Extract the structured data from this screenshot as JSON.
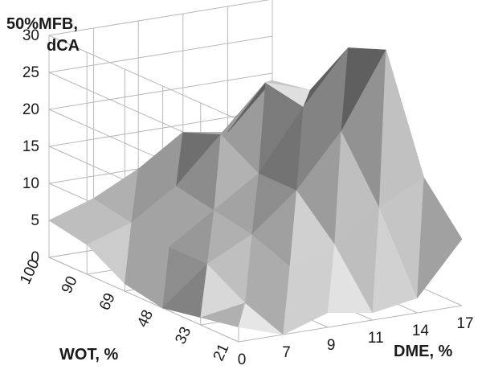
{
  "chart_data": {
    "type": "surface",
    "zlabel_line1": "50%MFB,",
    "zlabel_line2": "dCA",
    "xlabel": "DME, %",
    "ylabel": "WOT, %",
    "x_ticks": [
      "0",
      "7",
      "9",
      "11",
      "14",
      "17"
    ],
    "y_ticks": [
      "21",
      "33",
      "48",
      "69",
      "90",
      "100"
    ],
    "z_ticks": [
      "0",
      "5",
      "10",
      "15",
      "20",
      "25",
      "30"
    ],
    "zlim": [
      0,
      30
    ],
    "gridlines": true,
    "surface_color": "#a9a9a9",
    "grid_color": "#b8b8b8",
    "z_values": [
      [
        2,
        0,
        2,
        1,
        2,
        9
      ],
      [
        1,
        2,
        6,
        8,
        12,
        15
      ],
      [
        0,
        5,
        8,
        13,
        20,
        30
      ],
      [
        1,
        5,
        9,
        13,
        21,
        28
      ],
      [
        4,
        6,
        10,
        16,
        22,
        20
      ],
      [
        5,
        7,
        10,
        14,
        13,
        19
      ]
    ]
  }
}
